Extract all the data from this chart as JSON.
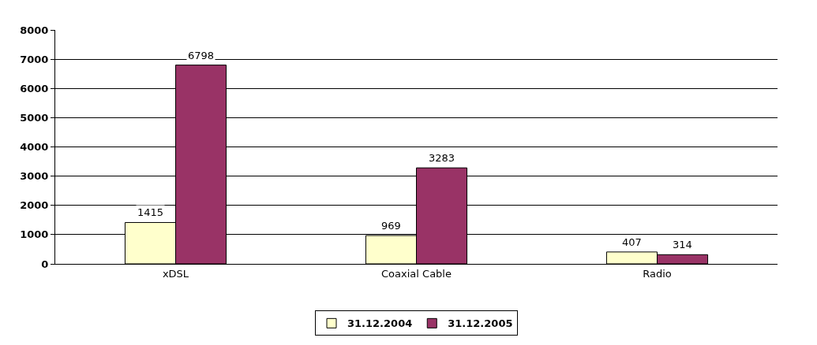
{
  "chart_data": {
    "type": "bar",
    "categories": [
      "xDSL",
      "Coaxial Cable",
      "Radio"
    ],
    "series": [
      {
        "name": "31.12.2004",
        "color": "#ffffcc",
        "values": [
          1415,
          969,
          407
        ]
      },
      {
        "name": "31.12.2005",
        "color": "#993366",
        "values": [
          6798,
          3283,
          314
        ]
      }
    ],
    "ylim": [
      0,
      8000
    ],
    "yticks": [
      0,
      1000,
      2000,
      3000,
      4000,
      5000,
      6000,
      7000,
      8000
    ],
    "grid": "y",
    "legend": "bottom",
    "data_labels": true
  }
}
